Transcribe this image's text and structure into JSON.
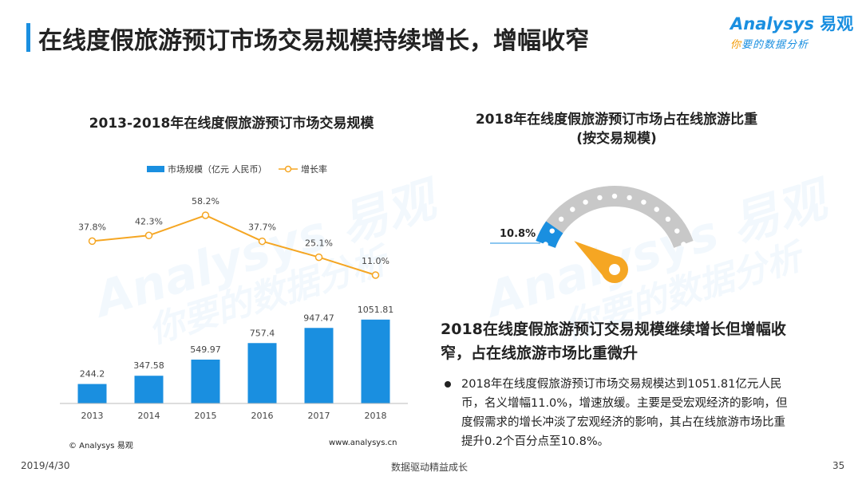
{
  "header": {
    "title": "在线度假旅游预订市场交易规模持续增长，增幅收窄",
    "logo_main": "Analysys",
    "logo_zh": "易观",
    "logo_sub_accent": "你",
    "logo_sub_rest": "要的数据分析"
  },
  "watermark": {
    "brand": "Analysys 易观",
    "slogan": "你要的数据分析"
  },
  "left_chart": {
    "title": "2013-2018年在线度假旅游预订市场交易规模",
    "source_left": "© Analysys 易观",
    "source_right": "www.analysys.cn"
  },
  "right_chart": {
    "title_line1": "2018年在线度假旅游预订市场占在线旅游比重",
    "title_line2": "(按交易规模)"
  },
  "summary": {
    "title": "2018在线度假旅游预订交易规模继续增长但增幅收窄，占在线旅游市场比重微升",
    "bullet": "2018年在线度假旅游预订市场交易规模达到1051.81亿元人民币，名义增幅11.0%，增速放缓。主要是受宏观经济的影响，但度假需求的增长冲淡了宏观经济的影响，其占在线旅游市场比重提升0.2个百分点至10.8%。"
  },
  "footer": {
    "date": "2019/4/30",
    "slogan": "数据驱动精益成长",
    "page": "35"
  },
  "colors": {
    "accent": "#1a8fe0",
    "bar": "#1a8fe0",
    "line": "#f5a623",
    "gauge_track": "#c8c8c8"
  },
  "chart_data": [
    {
      "type": "bar",
      "categories": [
        "2013",
        "2014",
        "2015",
        "2016",
        "2017",
        "2018"
      ],
      "series": [
        {
          "name": "市场规模（亿元 人民币）",
          "type": "bar",
          "values": [
            244.2,
            347.58,
            549.97,
            757.4,
            947.47,
            1051.81
          ],
          "labels": [
            "244.2",
            "347.58",
            "549.97",
            "757.4",
            "947.47",
            "1051.81"
          ]
        },
        {
          "name": "增长率",
          "type": "line",
          "values": [
            37.8,
            42.3,
            58.2,
            37.7,
            25.1,
            11.0
          ],
          "labels": [
            "37.8%",
            "42.3%",
            "58.2%",
            "37.7%",
            "25.1%",
            "11.0%"
          ]
        }
      ],
      "legend_position": "top-left",
      "grid": false
    },
    {
      "type": "pie",
      "style": "gauge",
      "value": 10.8,
      "value_label": "10.8%",
      "max": 100
    }
  ]
}
